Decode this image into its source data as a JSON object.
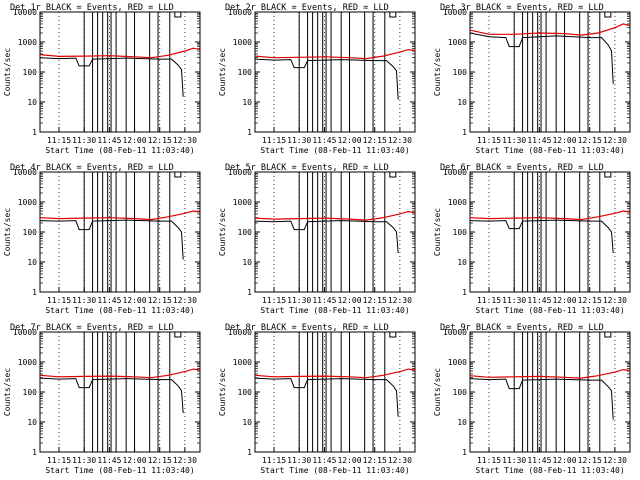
{
  "figure": {
    "colors": {
      "events": "#000000",
      "lld": "#e00000",
      "background": "#ffffff",
      "axes": "#000000"
    }
  },
  "chart_data": [
    {
      "type": "line",
      "title": "Det 1r BLACK = Events, RED = LLD",
      "xlabel": "Start Time (08-Feb-11 11:03:40)",
      "ylabel": "Counts/sec",
      "ylog": true,
      "ylim": [
        1,
        10000
      ],
      "xlim": [
        "11:03:40",
        "12:39:00"
      ],
      "x_ticks": [
        "11:15",
        "11:30",
        "11:45",
        "12:00",
        "12:15",
        "12:30"
      ],
      "y_ticks": [
        "1",
        "10",
        "100",
        "1000",
        "10000"
      ],
      "series": [
        {
          "name": "Events",
          "color": "#000000",
          "x": [
            "11:03:40",
            "11:15",
            "11:25",
            "11:27",
            "11:30",
            "11:33",
            "11:35",
            "11:45",
            "11:55",
            "12:05",
            "12:15",
            "12:22",
            "12:26",
            "12:28",
            "12:29"
          ],
          "y": [
            300,
            280,
            290,
            160,
            160,
            160,
            270,
            280,
            290,
            280,
            270,
            270,
            170,
            120,
            15
          ]
        },
        {
          "name": "LLD",
          "color": "#e00000",
          "x": [
            "11:03:40",
            "11:15",
            "11:30",
            "11:45",
            "12:00",
            "12:10",
            "12:20",
            "12:30",
            "12:35",
            "12:39"
          ],
          "y": [
            380,
            330,
            340,
            350,
            320,
            300,
            360,
            500,
            620,
            560
          ]
        }
      ],
      "dropouts": [
        "11:30",
        "11:35",
        "11:38",
        "11:41",
        "11:44",
        "11:46",
        "11:49",
        "11:55",
        "12:00",
        "12:09",
        "12:14",
        "12:21"
      ]
    },
    {
      "type": "line",
      "title": "Det 2r BLACK = Events, RED = LLD",
      "xlabel": "Start Time (08-Feb-11 11:03:40)",
      "ylabel": "Counts/sec",
      "ylog": true,
      "ylim": [
        1,
        10000
      ],
      "xlim": [
        "11:03:40",
        "12:39:00"
      ],
      "x_ticks": [
        "11:15",
        "11:30",
        "11:45",
        "12:00",
        "12:15",
        "12:30"
      ],
      "y_ticks": [
        "1",
        "10",
        "100",
        "1000",
        "10000"
      ],
      "series": [
        {
          "name": "Events",
          "color": "#000000",
          "x": [
            "11:03:40",
            "11:15",
            "11:25",
            "11:27",
            "11:30",
            "11:33",
            "11:35",
            "11:45",
            "11:55",
            "12:05",
            "12:15",
            "12:22",
            "12:26",
            "12:28",
            "12:29"
          ],
          "y": [
            270,
            250,
            260,
            140,
            140,
            140,
            240,
            250,
            260,
            250,
            240,
            240,
            150,
            110,
            12
          ]
        },
        {
          "name": "LLD",
          "color": "#e00000",
          "x": [
            "11:03:40",
            "11:15",
            "11:30",
            "11:45",
            "12:00",
            "12:10",
            "12:20",
            "12:30",
            "12:35",
            "12:39"
          ],
          "y": [
            340,
            300,
            310,
            320,
            300,
            280,
            340,
            460,
            560,
            520
          ]
        }
      ],
      "dropouts": [
        "11:30",
        "11:35",
        "11:38",
        "11:41",
        "11:44",
        "11:46",
        "11:49",
        "11:55",
        "12:00",
        "12:09",
        "12:14",
        "12:21"
      ]
    },
    {
      "type": "line",
      "title": "Det 3r BLACK = Events, RED = LLD",
      "xlabel": "Start Time (08-Feb-11 11:03:40)",
      "ylabel": "Counts/sec",
      "ylog": true,
      "ylim": [
        1,
        10000
      ],
      "xlim": [
        "11:03:40",
        "12:39:00"
      ],
      "x_ticks": [
        "11:15",
        "11:30",
        "11:45",
        "12:00",
        "12:15",
        "12:30"
      ],
      "y_ticks": [
        "1",
        "10",
        "100",
        "1000",
        "10000"
      ],
      "series": [
        {
          "name": "Events",
          "color": "#000000",
          "x": [
            "11:03:40",
            "11:15",
            "11:25",
            "11:27",
            "11:30",
            "11:33",
            "11:35",
            "11:45",
            "11:55",
            "12:05",
            "12:15",
            "12:22",
            "12:26",
            "12:28",
            "12:29"
          ],
          "y": [
            2000,
            1500,
            1400,
            700,
            700,
            700,
            1400,
            1500,
            1600,
            1500,
            1400,
            1400,
            800,
            500,
            40
          ]
        },
        {
          "name": "LLD",
          "color": "#e00000",
          "x": [
            "11:03:40",
            "11:15",
            "11:30",
            "11:45",
            "12:00",
            "12:10",
            "12:20",
            "12:30",
            "12:35",
            "12:39"
          ],
          "y": [
            2500,
            1800,
            1800,
            2000,
            1900,
            1700,
            2000,
            3000,
            4000,
            3500
          ]
        }
      ],
      "dropouts": [
        "11:30",
        "11:35",
        "11:38",
        "11:41",
        "11:44",
        "11:46",
        "11:49",
        "11:55",
        "12:00",
        "12:09",
        "12:14",
        "12:21"
      ]
    },
    {
      "type": "line",
      "title": "Det 4r BLACK = Events, RED = LLD",
      "xlabel": "Start Time (08-Feb-11 11:03:40)",
      "ylabel": "Counts/sec",
      "ylog": true,
      "ylim": [
        1,
        10000
      ],
      "xlim": [
        "11:03:40",
        "12:39:00"
      ],
      "x_ticks": [
        "11:15",
        "11:30",
        "11:45",
        "12:00",
        "12:15",
        "12:30"
      ],
      "y_ticks": [
        "1",
        "10",
        "100",
        "1000",
        "10000"
      ],
      "series": [
        {
          "name": "Events",
          "color": "#000000",
          "x": [
            "11:03:40",
            "11:15",
            "11:25",
            "11:27",
            "11:30",
            "11:33",
            "11:35",
            "11:45",
            "11:55",
            "12:05",
            "12:15",
            "12:22",
            "12:26",
            "12:28",
            "12:29"
          ],
          "y": [
            240,
            230,
            240,
            120,
            120,
            120,
            230,
            240,
            250,
            240,
            230,
            230,
            140,
            100,
            12
          ]
        },
        {
          "name": "LLD",
          "color": "#e00000",
          "x": [
            "11:03:40",
            "11:15",
            "11:30",
            "11:45",
            "12:00",
            "12:10",
            "12:20",
            "12:30",
            "12:35",
            "12:39"
          ],
          "y": [
            300,
            280,
            290,
            300,
            280,
            260,
            320,
            420,
            500,
            460
          ]
        }
      ],
      "dropouts": [
        "11:30",
        "11:35",
        "11:38",
        "11:41",
        "11:44",
        "11:46",
        "11:49",
        "11:55",
        "12:00",
        "12:09",
        "12:14",
        "12:21"
      ]
    },
    {
      "type": "line",
      "title": "Det 5r BLACK = Events, RED = LLD",
      "xlabel": "Start Time (08-Feb-11 11:03:40)",
      "ylabel": "Counts/sec",
      "ylog": true,
      "ylim": [
        1,
        10000
      ],
      "xlim": [
        "11:03:40",
        "12:39:00"
      ],
      "x_ticks": [
        "11:15",
        "11:30",
        "11:45",
        "12:00",
        "12:15",
        "12:30"
      ],
      "y_ticks": [
        "1",
        "10",
        "100",
        "1000",
        "10000"
      ],
      "series": [
        {
          "name": "Events",
          "color": "#000000",
          "x": [
            "11:03:40",
            "11:15",
            "11:25",
            "11:27",
            "11:30",
            "11:33",
            "11:35",
            "11:45",
            "11:55",
            "12:05",
            "12:15",
            "12:22",
            "12:26",
            "12:28",
            "12:29"
          ],
          "y": [
            230,
            220,
            230,
            120,
            120,
            120,
            220,
            230,
            240,
            230,
            220,
            220,
            140,
            100,
            20
          ]
        },
        {
          "name": "LLD",
          "color": "#e00000",
          "x": [
            "11:03:40",
            "11:15",
            "11:30",
            "11:45",
            "12:00",
            "12:10",
            "12:20",
            "12:30",
            "12:35",
            "12:39"
          ],
          "y": [
            290,
            270,
            280,
            290,
            270,
            250,
            300,
            400,
            480,
            440
          ]
        }
      ],
      "dropouts": [
        "11:30",
        "11:35",
        "11:38",
        "11:41",
        "11:44",
        "11:46",
        "11:49",
        "11:55",
        "12:00",
        "12:09",
        "12:14",
        "12:21"
      ]
    },
    {
      "type": "line",
      "title": "Det 6r BLACK = Events, RED = LLD",
      "xlabel": "Start Time (08-Feb-11 11:03:40)",
      "ylabel": "Counts/sec",
      "ylog": true,
      "ylim": [
        1,
        10000
      ],
      "xlim": [
        "11:03:40",
        "12:39:00"
      ],
      "x_ticks": [
        "11:15",
        "11:30",
        "11:45",
        "12:00",
        "12:15",
        "12:30"
      ],
      "y_ticks": [
        "1",
        "10",
        "100",
        "1000",
        "10000"
      ],
      "series": [
        {
          "name": "Events",
          "color": "#000000",
          "x": [
            "11:03:40",
            "11:15",
            "11:25",
            "11:27",
            "11:30",
            "11:33",
            "11:35",
            "11:45",
            "11:55",
            "12:05",
            "12:15",
            "12:22",
            "12:26",
            "12:28",
            "12:29"
          ],
          "y": [
            240,
            230,
            240,
            130,
            130,
            130,
            230,
            240,
            250,
            240,
            230,
            230,
            140,
            100,
            20
          ]
        },
        {
          "name": "LLD",
          "color": "#e00000",
          "x": [
            "11:03:40",
            "11:15",
            "11:30",
            "11:45",
            "12:00",
            "12:10",
            "12:20",
            "12:30",
            "12:35",
            "12:39"
          ],
          "y": [
            300,
            280,
            290,
            300,
            280,
            260,
            320,
            420,
            500,
            460
          ]
        }
      ],
      "dropouts": [
        "11:30",
        "11:35",
        "11:38",
        "11:41",
        "11:44",
        "11:46",
        "11:49",
        "11:55",
        "12:00",
        "12:09",
        "12:14",
        "12:21"
      ]
    },
    {
      "type": "line",
      "title": "Det 7r BLACK = Events, RED = LLD",
      "xlabel": "Start Time (08-Feb-11 11:03:40)",
      "ylabel": "Counts/sec",
      "ylog": true,
      "ylim": [
        1,
        10000
      ],
      "xlim": [
        "11:03:40",
        "12:39:00"
      ],
      "x_ticks": [
        "11:15",
        "11:30",
        "11:45",
        "12:00",
        "12:15",
        "12:30"
      ],
      "y_ticks": [
        "1",
        "10",
        "100",
        "1000",
        "10000"
      ],
      "series": [
        {
          "name": "Events",
          "color": "#000000",
          "x": [
            "11:03:40",
            "11:15",
            "11:25",
            "11:27",
            "11:30",
            "11:33",
            "11:35",
            "11:45",
            "11:55",
            "12:05",
            "12:15",
            "12:22",
            "12:26",
            "12:28",
            "12:29"
          ],
          "y": [
            290,
            270,
            280,
            140,
            140,
            140,
            260,
            270,
            280,
            270,
            260,
            260,
            160,
            110,
            20
          ]
        },
        {
          "name": "LLD",
          "color": "#e00000",
          "x": [
            "11:03:40",
            "11:15",
            "11:30",
            "11:45",
            "12:00",
            "12:10",
            "12:20",
            "12:30",
            "12:35",
            "12:39"
          ],
          "y": [
            360,
            320,
            330,
            340,
            320,
            300,
            360,
            480,
            580,
            540
          ]
        }
      ],
      "dropouts": [
        "11:30",
        "11:35",
        "11:38",
        "11:41",
        "11:44",
        "11:46",
        "11:49",
        "11:55",
        "12:00",
        "12:09",
        "12:14",
        "12:21"
      ]
    },
    {
      "type": "line",
      "title": "Det 8r BLACK = Events, RED = LLD",
      "xlabel": "Start Time (08-Feb-11 11:03:40)",
      "ylabel": "Counts/sec",
      "ylog": true,
      "ylim": [
        1,
        10000
      ],
      "xlim": [
        "11:03:40",
        "12:39:00"
      ],
      "x_ticks": [
        "11:15",
        "11:30",
        "11:45",
        "12:00",
        "12:15",
        "12:30"
      ],
      "y_ticks": [
        "1",
        "10",
        "100",
        "1000",
        "10000"
      ],
      "series": [
        {
          "name": "Events",
          "color": "#000000",
          "x": [
            "11:03:40",
            "11:15",
            "11:25",
            "11:27",
            "11:30",
            "11:33",
            "11:35",
            "11:45",
            "11:55",
            "12:05",
            "12:15",
            "12:22",
            "12:26",
            "12:28",
            "12:29"
          ],
          "y": [
            290,
            270,
            280,
            140,
            140,
            140,
            260,
            270,
            280,
            270,
            260,
            260,
            160,
            110,
            15
          ]
        },
        {
          "name": "LLD",
          "color": "#e00000",
          "x": [
            "11:03:40",
            "11:15",
            "11:30",
            "11:45",
            "12:00",
            "12:10",
            "12:20",
            "12:30",
            "12:35",
            "12:39"
          ],
          "y": [
            360,
            320,
            330,
            340,
            320,
            300,
            360,
            480,
            580,
            540
          ]
        }
      ],
      "dropouts": [
        "11:30",
        "11:35",
        "11:38",
        "11:41",
        "11:44",
        "11:46",
        "11:49",
        "11:55",
        "12:00",
        "12:09",
        "12:14",
        "12:21"
      ]
    },
    {
      "type": "line",
      "title": "Det 9r BLACK = Events, RED = LLD",
      "xlabel": "Start Time (08-Feb-11 11:03:40)",
      "ylabel": "Counts/sec",
      "ylog": true,
      "ylim": [
        1,
        10000
      ],
      "xlim": [
        "11:03:40",
        "12:39:00"
      ],
      "x_ticks": [
        "11:15",
        "11:30",
        "11:45",
        "12:00",
        "12:15",
        "12:30"
      ],
      "y_ticks": [
        "1",
        "10",
        "100",
        "1000",
        "10000"
      ],
      "series": [
        {
          "name": "Events",
          "color": "#000000",
          "x": [
            "11:03:40",
            "11:15",
            "11:25",
            "11:27",
            "11:30",
            "11:33",
            "11:35",
            "11:45",
            "11:55",
            "12:05",
            "12:15",
            "12:22",
            "12:26",
            "12:28",
            "12:29"
          ],
          "y": [
            280,
            260,
            270,
            130,
            130,
            130,
            250,
            260,
            270,
            260,
            250,
            250,
            150,
            110,
            12
          ]
        },
        {
          "name": "LLD",
          "color": "#e00000",
          "x": [
            "11:03:40",
            "11:15",
            "11:30",
            "11:45",
            "12:00",
            "12:10",
            "12:20",
            "12:30",
            "12:35",
            "12:39"
          ],
          "y": [
            350,
            310,
            320,
            330,
            310,
            290,
            350,
            460,
            560,
            520
          ]
        }
      ],
      "dropouts": [
        "11:30",
        "11:35",
        "11:38",
        "11:41",
        "11:44",
        "11:46",
        "11:49",
        "11:55",
        "12:00",
        "12:09",
        "12:14",
        "12:21"
      ]
    }
  ]
}
